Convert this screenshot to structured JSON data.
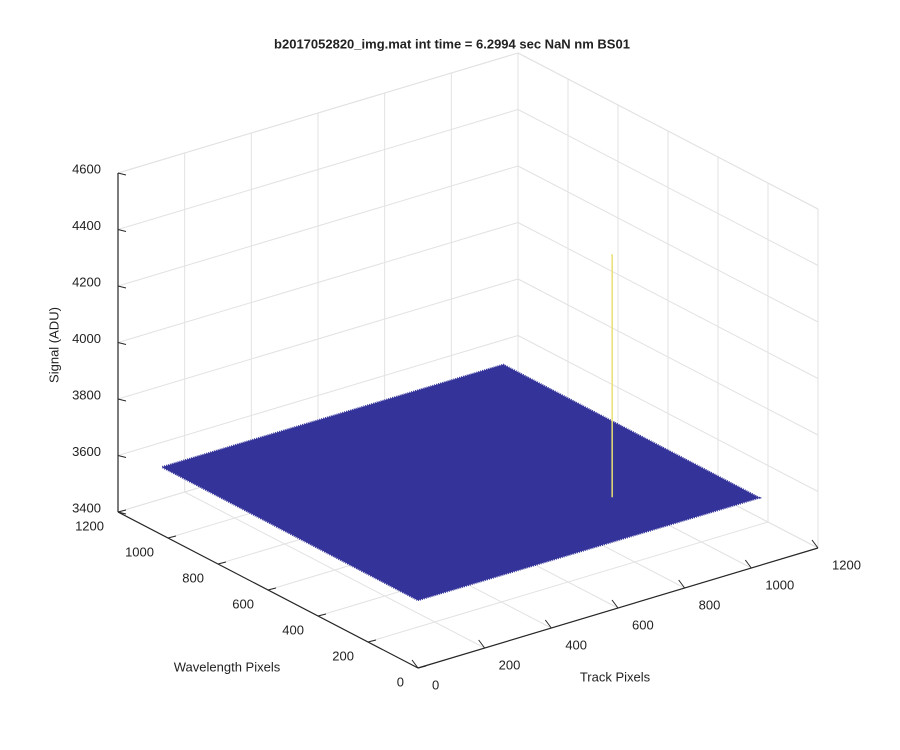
{
  "chart_data": {
    "type": "surface",
    "title": "b2017052820_img.mat int time = 6.2994 sec  NaN nm BS01",
    "xlabel": "Track Pixels",
    "ylabel": "Wavelength Pixels",
    "zlabel": "Signal (ADU)",
    "xlim": [
      0,
      1200
    ],
    "xticks": [
      0,
      200,
      400,
      600,
      800,
      1000,
      1200
    ],
    "ylim": [
      0,
      1200
    ],
    "yticks": [
      0,
      200,
      400,
      600,
      800,
      1000,
      1200
    ],
    "zlim": [
      3400,
      4600
    ],
    "zticks": [
      3400,
      3600,
      3800,
      4000,
      4200,
      4400,
      4600
    ],
    "surface": {
      "x_extent": 1024,
      "y_extent": 1024,
      "level": 3640,
      "color": "#33339a"
    },
    "spike": {
      "x": 746,
      "y": 218,
      "z": 4500,
      "color": "#e8e070"
    },
    "grid": true
  }
}
